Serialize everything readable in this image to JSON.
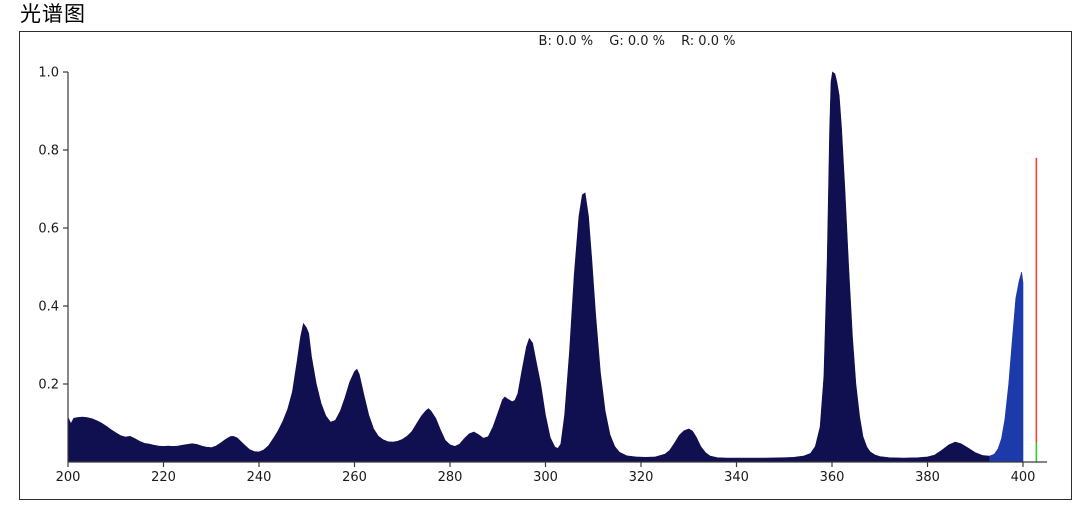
{
  "title": "光谱图",
  "legend": {
    "b": "B: 0.0 %",
    "g": "G: 0.0 %",
    "r": "R: 0.0 %"
  },
  "colors": {
    "spectrum_fill": "#101050",
    "cutoff_fill": "#1c3aaa",
    "marker_red": "#ef443d",
    "marker_green": "#33cc33",
    "axis": "#3a3a3a",
    "border": "#2e2e2e",
    "tick_text": "#1a1a1a",
    "background": "#ffffff"
  },
  "chart_data": {
    "type": "area",
    "title": "光谱图",
    "overlay_text": "B: 0.0 %  G: 0.0 %  R: 0.0 %",
    "xlabel": "",
    "ylabel": "",
    "xlim": [
      200,
      405
    ],
    "ylim": [
      0,
      1.05
    ],
    "grid": false,
    "legend_position": "none",
    "x_ticks": [
      200,
      220,
      240,
      260,
      280,
      300,
      320,
      340,
      360,
      380,
      400
    ],
    "y_ticks": [
      0.2,
      0.4,
      0.6,
      0.8,
      1.0
    ],
    "series": [
      {
        "name": "spectrum",
        "type": "area",
        "color": "#101050",
        "points": [
          [
            200,
            0.115
          ],
          [
            200.6,
            0.098
          ],
          [
            201.2,
            0.112
          ],
          [
            202,
            0.114
          ],
          [
            203,
            0.115
          ],
          [
            204,
            0.114
          ],
          [
            205,
            0.111
          ],
          [
            206,
            0.106
          ],
          [
            207,
            0.1
          ],
          [
            208,
            0.092
          ],
          [
            209,
            0.083
          ],
          [
            210,
            0.075
          ],
          [
            211,
            0.068
          ],
          [
            212,
            0.064
          ],
          [
            213,
            0.066
          ],
          [
            214,
            0.06
          ],
          [
            215,
            0.053
          ],
          [
            216,
            0.048
          ],
          [
            217,
            0.046
          ],
          [
            218,
            0.043
          ],
          [
            219,
            0.041
          ],
          [
            220,
            0.04
          ],
          [
            221,
            0.041
          ],
          [
            222,
            0.04
          ],
          [
            223,
            0.041
          ],
          [
            224,
            0.043
          ],
          [
            225,
            0.045
          ],
          [
            226,
            0.047
          ],
          [
            227,
            0.045
          ],
          [
            228,
            0.041
          ],
          [
            229,
            0.038
          ],
          [
            230,
            0.037
          ],
          [
            231,
            0.041
          ],
          [
            232,
            0.049
          ],
          [
            233,
            0.058
          ],
          [
            234,
            0.065
          ],
          [
            234.6,
            0.066
          ],
          [
            235.4,
            0.062
          ],
          [
            236,
            0.055
          ],
          [
            237,
            0.043
          ],
          [
            238,
            0.032
          ],
          [
            239,
            0.027
          ],
          [
            240,
            0.026
          ],
          [
            241,
            0.031
          ],
          [
            242,
            0.042
          ],
          [
            243,
            0.06
          ],
          [
            244,
            0.08
          ],
          [
            245,
            0.105
          ],
          [
            246,
            0.135
          ],
          [
            247,
            0.18
          ],
          [
            248,
            0.26
          ],
          [
            248.7,
            0.32
          ],
          [
            249.3,
            0.355
          ],
          [
            249.9,
            0.345
          ],
          [
            250.4,
            0.33
          ],
          [
            251,
            0.27
          ],
          [
            252,
            0.2
          ],
          [
            253,
            0.15
          ],
          [
            254,
            0.118
          ],
          [
            255,
            0.102
          ],
          [
            256,
            0.107
          ],
          [
            257,
            0.13
          ],
          [
            258,
            0.165
          ],
          [
            259,
            0.205
          ],
          [
            260,
            0.232
          ],
          [
            260.5,
            0.238
          ],
          [
            261,
            0.225
          ],
          [
            262,
            0.17
          ],
          [
            263,
            0.12
          ],
          [
            264,
            0.085
          ],
          [
            265,
            0.066
          ],
          [
            266,
            0.057
          ],
          [
            267,
            0.052
          ],
          [
            268,
            0.051
          ],
          [
            269,
            0.053
          ],
          [
            270,
            0.058
          ],
          [
            271,
            0.066
          ],
          [
            272,
            0.078
          ],
          [
            273,
            0.098
          ],
          [
            274,
            0.118
          ],
          [
            275,
            0.132
          ],
          [
            275.5,
            0.137
          ],
          [
            276,
            0.131
          ],
          [
            277,
            0.112
          ],
          [
            278,
            0.082
          ],
          [
            279,
            0.056
          ],
          [
            280,
            0.044
          ],
          [
            281,
            0.04
          ],
          [
            282,
            0.046
          ],
          [
            283,
            0.06
          ],
          [
            284,
            0.072
          ],
          [
            285,
            0.077
          ],
          [
            286,
            0.07
          ],
          [
            287,
            0.061
          ],
          [
            288,
            0.065
          ],
          [
            289,
            0.09
          ],
          [
            290,
            0.125
          ],
          [
            291,
            0.16
          ],
          [
            291.5,
            0.167
          ],
          [
            292,
            0.162
          ],
          [
            293,
            0.155
          ],
          [
            293.6,
            0.158
          ],
          [
            294.2,
            0.175
          ],
          [
            295,
            0.23
          ],
          [
            296,
            0.295
          ],
          [
            296.6,
            0.317
          ],
          [
            297.3,
            0.305
          ],
          [
            298,
            0.26
          ],
          [
            299,
            0.2
          ],
          [
            300,
            0.12
          ],
          [
            301,
            0.062
          ],
          [
            302,
            0.038
          ],
          [
            302.6,
            0.035
          ],
          [
            303.2,
            0.046
          ],
          [
            304,
            0.12
          ],
          [
            305,
            0.28
          ],
          [
            306,
            0.48
          ],
          [
            307,
            0.63
          ],
          [
            307.7,
            0.685
          ],
          [
            308.3,
            0.69
          ],
          [
            309,
            0.63
          ],
          [
            309.7,
            0.52
          ],
          [
            310.5,
            0.38
          ],
          [
            311.5,
            0.23
          ],
          [
            312.5,
            0.13
          ],
          [
            313.5,
            0.07
          ],
          [
            314.5,
            0.04
          ],
          [
            315.5,
            0.025
          ],
          [
            317,
            0.016
          ],
          [
            319,
            0.013
          ],
          [
            321,
            0.012
          ],
          [
            323,
            0.013
          ],
          [
            325,
            0.02
          ],
          [
            326,
            0.03
          ],
          [
            327,
            0.048
          ],
          [
            328,
            0.068
          ],
          [
            329,
            0.08
          ],
          [
            330,
            0.085
          ],
          [
            330.8,
            0.079
          ],
          [
            331.6,
            0.063
          ],
          [
            332.5,
            0.04
          ],
          [
            333.5,
            0.024
          ],
          [
            334.5,
            0.015
          ],
          [
            336,
            0.011
          ],
          [
            338,
            0.01
          ],
          [
            342,
            0.01
          ],
          [
            346,
            0.01
          ],
          [
            350,
            0.011
          ],
          [
            352,
            0.012
          ],
          [
            354,
            0.015
          ],
          [
            355.5,
            0.022
          ],
          [
            356.5,
            0.04
          ],
          [
            357.5,
            0.09
          ],
          [
            358.3,
            0.22
          ],
          [
            359,
            0.52
          ],
          [
            359.5,
            0.85
          ],
          [
            359.8,
            0.975
          ],
          [
            360.1,
            1.0
          ],
          [
            360.6,
            0.995
          ],
          [
            361,
            0.975
          ],
          [
            361.5,
            0.94
          ],
          [
            362,
            0.855
          ],
          [
            362.7,
            0.7
          ],
          [
            363.5,
            0.5
          ],
          [
            364.3,
            0.32
          ],
          [
            365,
            0.2
          ],
          [
            365.8,
            0.115
          ],
          [
            366.5,
            0.065
          ],
          [
            367.3,
            0.038
          ],
          [
            368,
            0.026
          ],
          [
            369,
            0.018
          ],
          [
            370,
            0.014
          ],
          [
            372,
            0.011
          ],
          [
            375,
            0.01
          ],
          [
            378,
            0.011
          ],
          [
            380,
            0.013
          ],
          [
            381.5,
            0.018
          ],
          [
            383,
            0.03
          ],
          [
            384.5,
            0.044
          ],
          [
            385.8,
            0.051
          ],
          [
            387,
            0.047
          ],
          [
            388.5,
            0.036
          ],
          [
            390,
            0.024
          ],
          [
            391.5,
            0.017
          ],
          [
            393,
            0.015
          ]
        ]
      },
      {
        "name": "cutoff-peak",
        "type": "area",
        "color": "#1c3aaa",
        "points": [
          [
            393,
            0.015
          ],
          [
            394,
            0.02
          ],
          [
            394.8,
            0.035
          ],
          [
            395.5,
            0.06
          ],
          [
            396.2,
            0.11
          ],
          [
            397,
            0.2
          ],
          [
            397.8,
            0.32
          ],
          [
            398.5,
            0.42
          ],
          [
            399.2,
            0.465
          ],
          [
            399.7,
            0.487
          ],
          [
            400,
            0.46
          ]
        ]
      }
    ],
    "markers": [
      {
        "name": "red-marker-line",
        "x": 402.8,
        "y0": 0.05,
        "y1": 0.78,
        "color": "#ef443d"
      },
      {
        "name": "green-marker-line",
        "x": 402.8,
        "y0": 0.0,
        "y1": 0.05,
        "color": "#33cc33"
      }
    ]
  }
}
